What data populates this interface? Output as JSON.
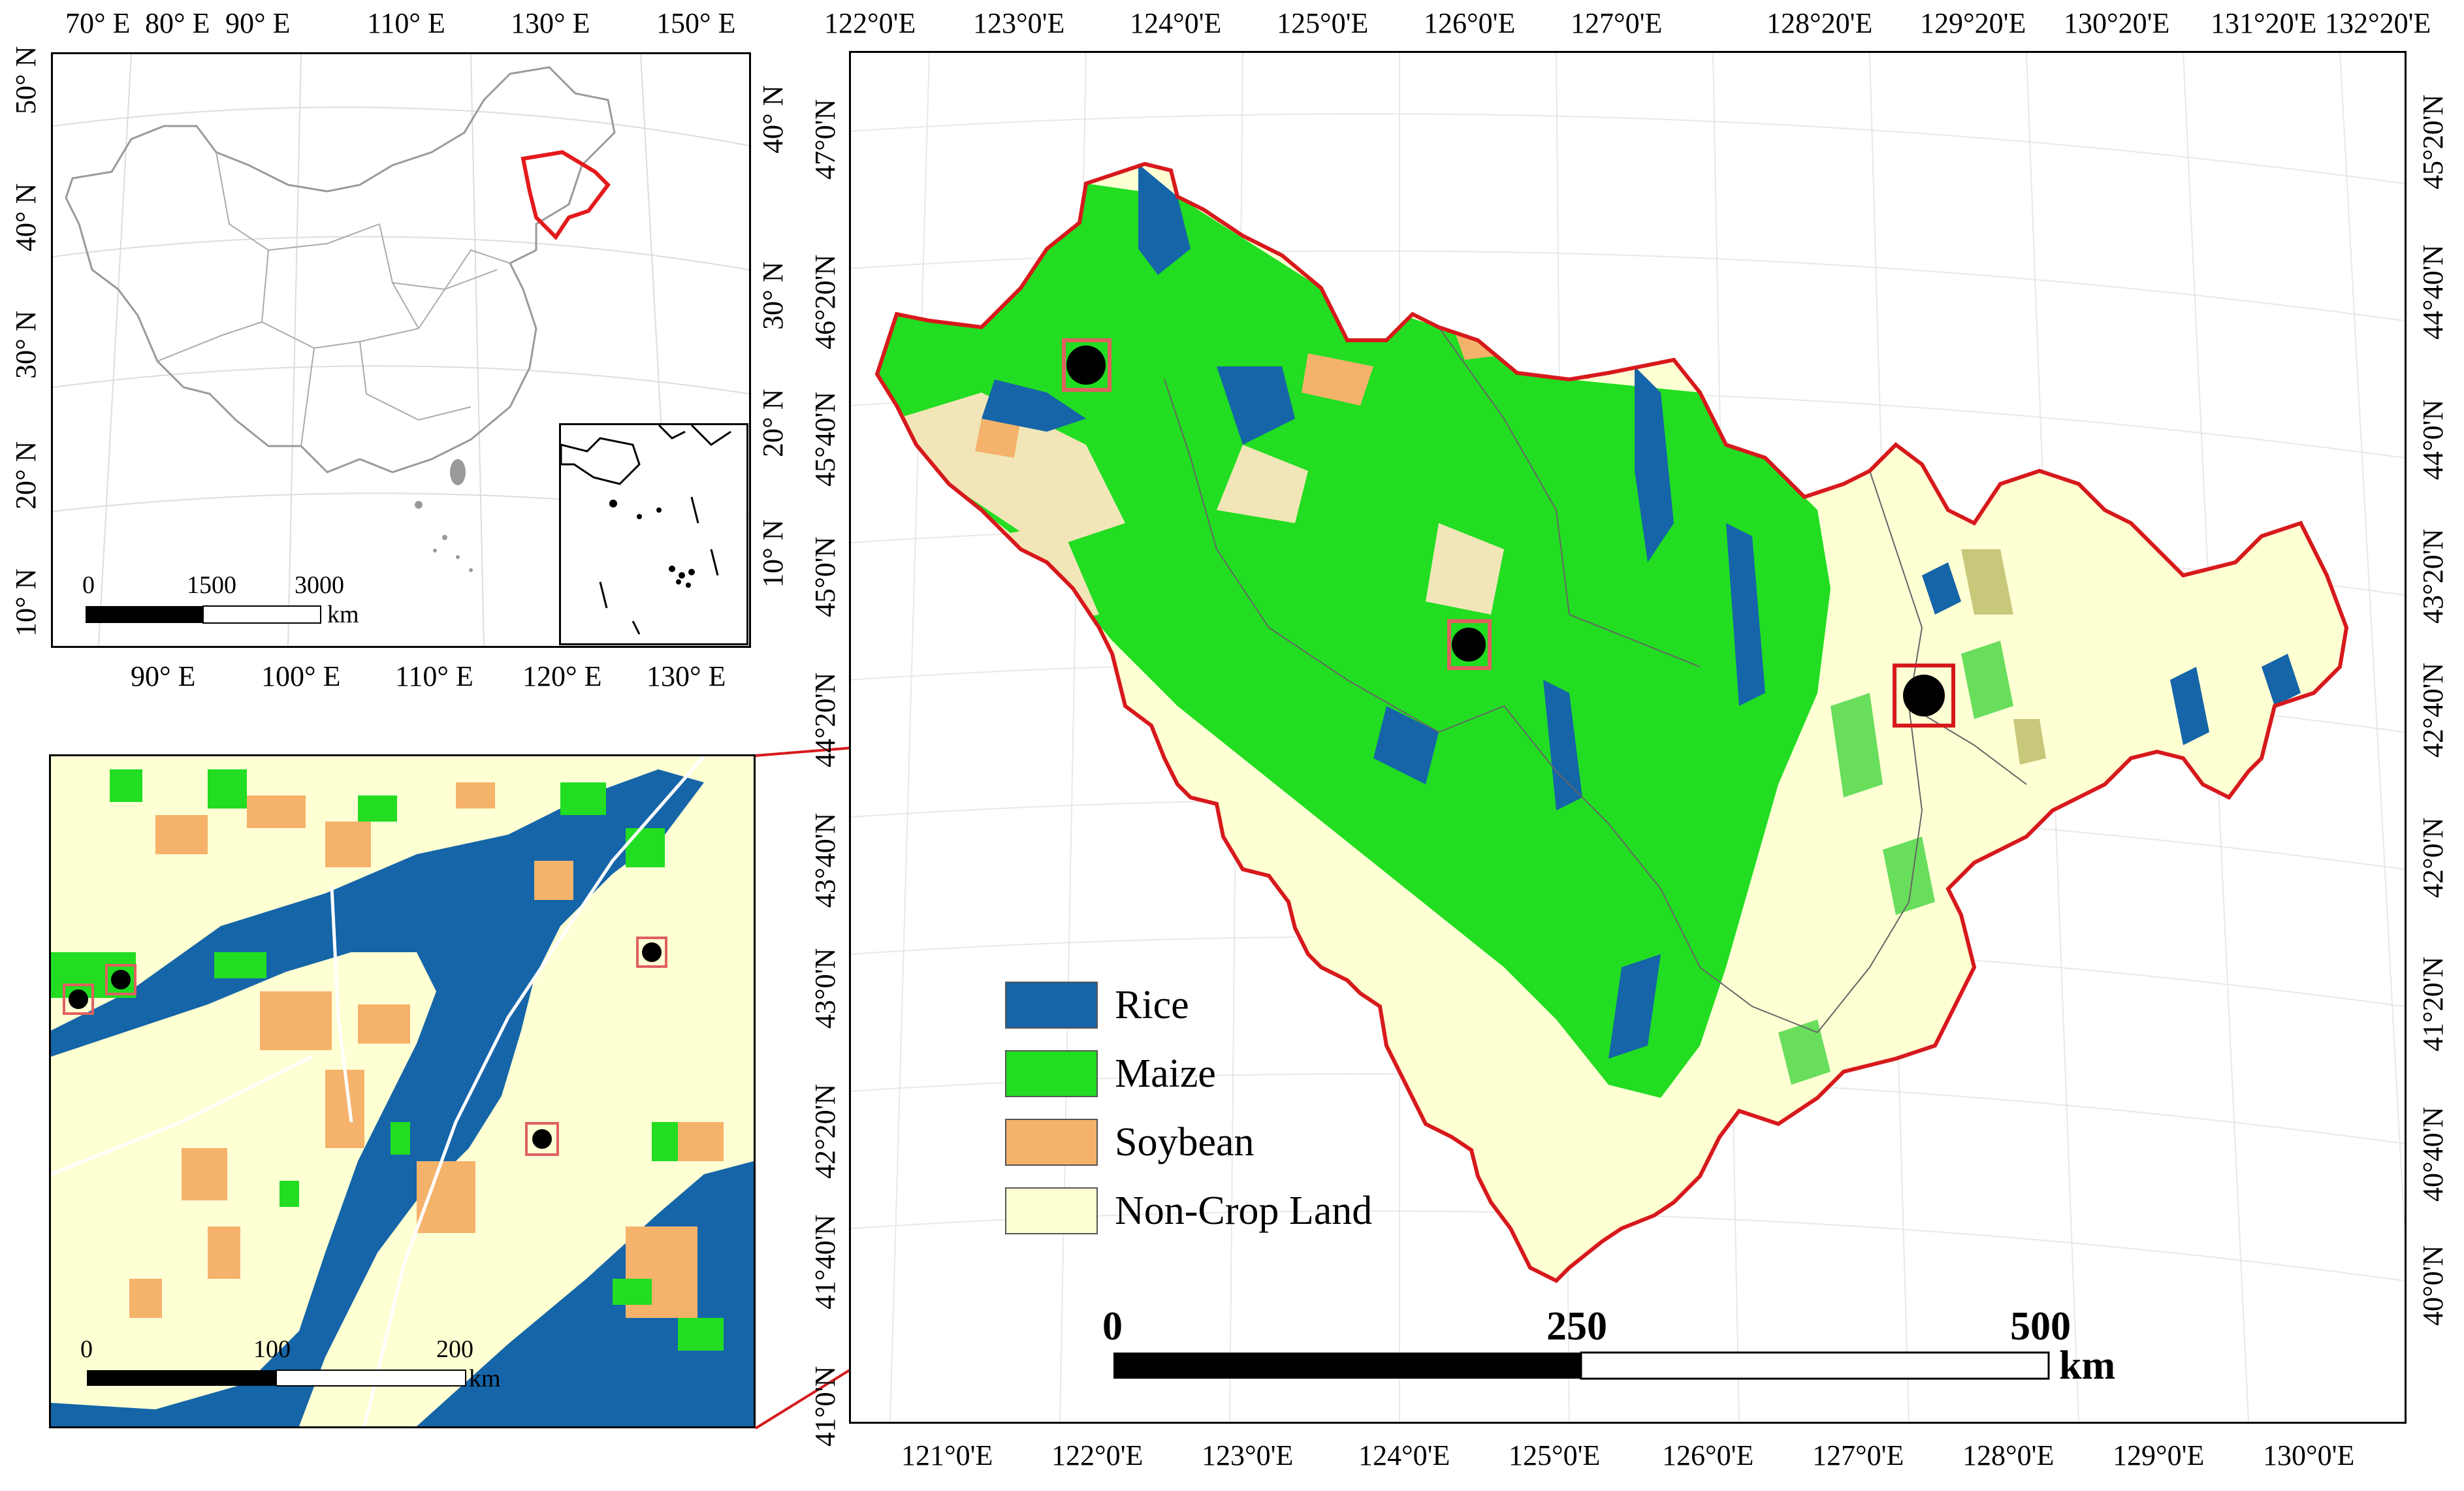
{
  "overview_map": {
    "top_labels": [
      "70° E",
      "80° E",
      "90° E",
      "110° E",
      "130° E",
      "150° E"
    ],
    "bottom_labels": [
      "90° E",
      "100° E",
      "110° E",
      "120° E",
      "130° E"
    ],
    "left_labels": [
      "50° N",
      "40° N",
      "30° N",
      "20° N",
      "10° N"
    ],
    "right_labels": [
      "40° N",
      "30° N",
      "20° N",
      "10° N"
    ],
    "scale_bar": {
      "ticks": [
        "0",
        "1500",
        "3000"
      ],
      "unit": "km"
    },
    "highlight_color": "#e41a1c"
  },
  "detail_map": {
    "scale_bar": {
      "ticks": [
        "0",
        "100",
        "200"
      ],
      "unit": "km"
    }
  },
  "main_map": {
    "top_labels": [
      "122°0'E",
      "123°0'E",
      "124°0'E",
      "125°0'E",
      "126°0'E",
      "127°0'E",
      "128°20'E",
      "129°20'E",
      "130°20'E",
      "131°20'E",
      "132°20'E"
    ],
    "bottom_labels": [
      "121°0'E",
      "122°0'E",
      "123°0'E",
      "124°0'E",
      "125°0'E",
      "126°0'E",
      "127°0'E",
      "128°0'E",
      "129°0'E",
      "130°0'E"
    ],
    "left_labels": [
      "47°0'N",
      "46°20'N",
      "45°40'N",
      "45°0'N",
      "44°20'N",
      "43°40'N",
      "43°0'N",
      "42°20'N",
      "41°40'N",
      "41°0'N"
    ],
    "right_labels": [
      "45°20'N",
      "44°40'N",
      "44°0'N",
      "43°20'N",
      "42°40'N",
      "42°0'N",
      "41°20'N",
      "40°40'N",
      "40°0'N"
    ],
    "scale_bar": {
      "ticks": [
        "0",
        "250",
        "500"
      ],
      "unit": "km"
    },
    "boundary_color": "#d7191c"
  },
  "legend": {
    "items": [
      {
        "label": "Rice",
        "color": "#1565a8"
      },
      {
        "label": "Maize",
        "color": "#22dd22"
      },
      {
        "label": "Soybean",
        "color": "#f5b26b"
      },
      {
        "label": "Non-Crop Land",
        "color": "#ffffd4"
      }
    ]
  }
}
